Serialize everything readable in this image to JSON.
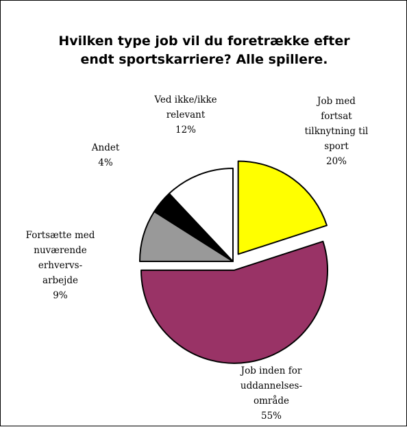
{
  "chart_data": {
    "type": "pie",
    "title": "Hvilken type job vil du foretrække efter endt sportskarriere? Alle spillere.",
    "title_lines": [
      "Hvilken type job vil du foretrække efter",
      "endt sportskarriere? Alle spillere."
    ],
    "start_angle": "12 o'clock, clockwise",
    "slices": [
      {
        "label": "Job med fortsat tilknytning til sport",
        "label_lines": [
          "Job med",
          "fortsat",
          "tilknytning til",
          "sport"
        ],
        "value": 20,
        "value_label": "20%",
        "color": "#FFFF00",
        "exploded": true
      },
      {
        "label": "Job inden for uddannelses-område",
        "label_lines": [
          "Job inden for",
          "uddannelses-",
          "område"
        ],
        "value": 55,
        "value_label": "55%",
        "color": "#993366",
        "exploded": true
      },
      {
        "label": "Fortsætte med nuværende erhvervs-arbejde",
        "label_lines": [
          "Fortsætte med",
          "nuværende",
          "erhvervs-",
          "arbejde"
        ],
        "value": 9,
        "value_label": "9%",
        "color": "#999999",
        "exploded": false
      },
      {
        "label": "Andet",
        "label_lines": [
          "Andet"
        ],
        "value": 4,
        "value_label": "4%",
        "color": "#000000",
        "exploded": false
      },
      {
        "label": "Ved ikke/ikke relevant",
        "label_lines": [
          "Ved ikke/ikke",
          "relevant"
        ],
        "value": 12,
        "value_label": "12%",
        "color": "#FFFFFF",
        "exploded": false
      }
    ]
  }
}
